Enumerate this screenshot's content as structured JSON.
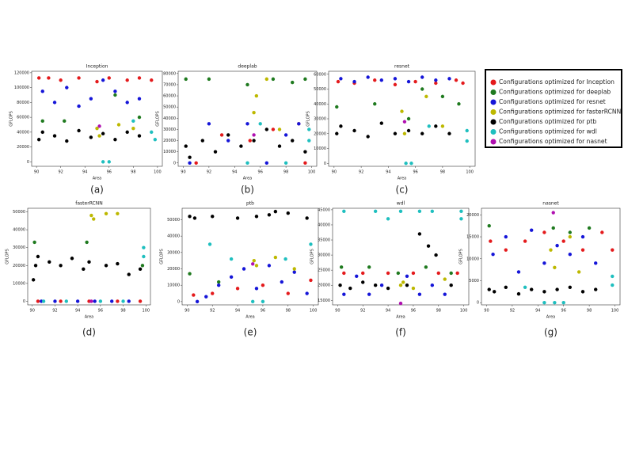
{
  "legend": [
    {
      "name": "Configurations optimized for Inception",
      "color": "#e41a1c"
    },
    {
      "name": "Configurations optimized for deeplab",
      "color": "#1f7a1f"
    },
    {
      "name": "Configurations optimized for  resnet",
      "color": "#1515d8"
    },
    {
      "name": "Configurations optimized for  fasterRCNN",
      "color": "#bdb800"
    },
    {
      "name": "Configurations optimized for  ptb",
      "color": "#000000"
    },
    {
      "name": "Configurations optimized for  wdl",
      "color": "#1fbfbf"
    },
    {
      "name": "Configurations optimized for  nasnet",
      "color": "#b010b0"
    }
  ],
  "chart_data": [
    {
      "type": "scatter",
      "title": "Inception",
      "label": "(a)",
      "xlabel": "Area",
      "ylabel": "GFLOPS",
      "xlim": [
        89.6,
        100.4
      ],
      "xticks": [
        90,
        92,
        94,
        96,
        98,
        100
      ],
      "ylim": [
        -6000,
        122000
      ],
      "yticks": [
        0,
        20000,
        40000,
        60000,
        80000,
        100000,
        120000
      ],
      "series": [
        {
          "x": [
            90.2,
            91,
            92,
            93.5,
            95,
            96,
            97.5,
            98.5,
            99.5
          ],
          "y": [
            113000,
            113000,
            110000,
            113000,
            108000,
            113000,
            110000,
            113000,
            110000
          ]
        },
        {
          "x": [
            90.5,
            92.3,
            96.5,
            98.5
          ],
          "y": [
            55000,
            55000,
            90000,
            60000
          ]
        },
        {
          "x": [
            90.5,
            91.5,
            92.5,
            93.5,
            94.5,
            95.5,
            96.5,
            97.5,
            98.5
          ],
          "y": [
            95000,
            80000,
            100000,
            75000,
            85000,
            110000,
            95000,
            80000,
            85000
          ]
        },
        {
          "x": [
            95,
            95.2,
            96.8,
            98
          ],
          "y": [
            45000,
            35000,
            50000,
            45000
          ]
        },
        {
          "x": [
            90.2,
            90.5,
            91.5,
            92.5,
            93.5,
            94.5,
            95.5,
            96.5,
            97.5,
            98.5
          ],
          "y": [
            30000,
            40000,
            35000,
            28000,
            42000,
            33000,
            38000,
            30000,
            40000,
            35000
          ]
        },
        {
          "x": [
            95.5,
            96,
            99.5,
            99.8,
            98
          ],
          "y": [
            0,
            0,
            40000,
            30000,
            55000
          ]
        },
        {
          "x": [
            95.2
          ],
          "y": [
            48000
          ]
        }
      ]
    },
    {
      "type": "scatter",
      "title": "deeplab",
      "label": "(b)",
      "xlabel": "Area",
      "ylabel": "GFLOPS",
      "xlim": [
        89.6,
        100.4
      ],
      "xticks": [
        90,
        92,
        94,
        96,
        98,
        100
      ],
      "ylim": [
        -3000,
        82000
      ],
      "yticks": [
        0,
        10000,
        20000,
        30000,
        40000,
        50000,
        60000,
        70000,
        80000
      ],
      "series": [
        {
          "x": [
            91,
            93,
            95.2,
            97,
            99,
            99.5
          ],
          "y": [
            0,
            25000,
            20000,
            30000,
            35000,
            0
          ]
        },
        {
          "x": [
            90.2,
            92,
            95,
            97,
            98.5,
            99.5
          ],
          "y": [
            75000,
            75000,
            70000,
            75000,
            72000,
            75000
          ]
        },
        {
          "x": [
            90.5,
            92,
            93.5,
            95,
            96.5,
            98,
            99
          ],
          "y": [
            0,
            35000,
            20000,
            35000,
            0,
            25000,
            35000
          ]
        },
        {
          "x": [
            95.5,
            95.7,
            96.5,
            97.5
          ],
          "y": [
            45000,
            60000,
            75000,
            30000
          ]
        },
        {
          "x": [
            90.2,
            90.5,
            91.5,
            92.5,
            93.5,
            94.5,
            95.5,
            96.5,
            97.5,
            98.5,
            99.5
          ],
          "y": [
            15000,
            5000,
            20000,
            10000,
            25000,
            15000,
            20000,
            30000,
            15000,
            20000,
            10000
          ]
        },
        {
          "x": [
            95,
            96,
            98,
            99.8,
            99.8
          ],
          "y": [
            0,
            35000,
            0,
            30000,
            20000
          ]
        },
        {
          "x": [
            95.5
          ],
          "y": [
            25000
          ]
        }
      ]
    },
    {
      "type": "scatter",
      "title": "resnet",
      "label": "(c)",
      "xlabel": "Area",
      "ylabel": "GFLOPS",
      "xlim": [
        89.6,
        100.4
      ],
      "xticks": [
        90,
        92,
        94,
        96,
        98,
        100
      ],
      "ylim": [
        -2000,
        62000
      ],
      "yticks": [
        0,
        10000,
        20000,
        30000,
        40000,
        50000,
        60000
      ],
      "series": [
        {
          "x": [
            90.3,
            91.5,
            93,
            94.5,
            96,
            97.5,
            99,
            99.5
          ],
          "y": [
            55000,
            54000,
            56000,
            53000,
            55000,
            54000,
            56000,
            54000
          ]
        },
        {
          "x": [
            90.2,
            93,
            95.5,
            96.5,
            98,
            99.2
          ],
          "y": [
            38000,
            40000,
            30000,
            50000,
            45000,
            40000
          ]
        },
        {
          "x": [
            90.5,
            91.5,
            92.5,
            93.5,
            94.5,
            95.5,
            96.5,
            97.5,
            98.5
          ],
          "y": [
            57000,
            55000,
            58000,
            56000,
            57000,
            55000,
            58000,
            56000,
            57000
          ]
        },
        {
          "x": [
            95,
            95.2,
            96.8,
            98
          ],
          "y": [
            35000,
            20000,
            45000,
            25000
          ]
        },
        {
          "x": [
            90.2,
            90.5,
            91.5,
            92.5,
            93.5,
            94.5,
            95.5,
            96.5,
            97.5,
            98.5
          ],
          "y": [
            20000,
            25000,
            22000,
            18000,
            27000,
            20000,
            22000,
            20000,
            25000,
            20000
          ]
        },
        {
          "x": [
            95.3,
            95.7,
            97,
            99.8,
            99.8
          ],
          "y": [
            0,
            0,
            25000,
            15000,
            22000
          ]
        },
        {
          "x": [
            95.2
          ],
          "y": [
            28000
          ]
        }
      ]
    },
    {
      "type": "scatter",
      "title": "fasterRCNN",
      "label": "(d)",
      "xlabel": "Area",
      "ylabel": "GFLOPS",
      "xlim": [
        89.6,
        100.4
      ],
      "xticks": [
        90,
        92,
        94,
        96,
        98,
        100
      ],
      "ylim": [
        -2000,
        52000
      ],
      "yticks": [
        0,
        10000,
        20000,
        30000,
        40000,
        50000
      ],
      "series": [
        {
          "x": [
            90.5,
            92.5,
            95,
            97.5,
            99.5
          ],
          "y": [
            0,
            0,
            0,
            0,
            0
          ]
        },
        {
          "x": [
            90.2,
            94.8,
            99.7
          ],
          "y": [
            33000,
            33000,
            20000
          ]
        },
        {
          "x": [
            90.8,
            92,
            94,
            95.5,
            97,
            98.5
          ],
          "y": [
            0,
            0,
            0,
            0,
            0,
            0
          ]
        },
        {
          "x": [
            95.2,
            95.4,
            96.5,
            97.5
          ],
          "y": [
            48000,
            46000,
            49000,
            49000
          ]
        },
        {
          "x": [
            90.1,
            90.3,
            90.5,
            91.5,
            92.5,
            93.5,
            94.5,
            95,
            96.5,
            97.5,
            98.5,
            99.5
          ],
          "y": [
            12000,
            20000,
            25000,
            22000,
            20000,
            24000,
            18000,
            22000,
            20000,
            21000,
            15000,
            18000
          ]
        },
        {
          "x": [
            91,
            93,
            96,
            98,
            99.8,
            99.8
          ],
          "y": [
            0,
            0,
            0,
            0,
            25000,
            30000
          ]
        },
        {
          "x": [
            95.2
          ],
          "y": [
            0
          ]
        }
      ]
    },
    {
      "type": "scatter",
      "title": "ptb",
      "label": "(e)",
      "xlabel": "Area",
      "ylabel": "GFLOPS",
      "xlim": [
        89.6,
        100.4
      ],
      "xticks": [
        90,
        92,
        94,
        96,
        98,
        100
      ],
      "ylim": [
        -2000,
        57000
      ],
      "yticks": [
        0,
        10000,
        20000,
        30000,
        40000,
        50000
      ],
      "series": [
        {
          "x": [
            90.5,
            92,
            94,
            96,
            98,
            99.8
          ],
          "y": [
            4000,
            5000,
            8000,
            10000,
            5000,
            13000
          ]
        },
        {
          "x": [
            90.2,
            92.5
          ],
          "y": [
            17000,
            12000
          ]
        },
        {
          "x": [
            90.8,
            91.5,
            92.5,
            93.5,
            94.5,
            95.5,
            96.5,
            97.5,
            98.5,
            99.5
          ],
          "y": [
            0,
            3000,
            10000,
            15000,
            20000,
            8000,
            22000,
            12000,
            18000,
            5000
          ]
        },
        {
          "x": [
            95.3,
            95.5,
            97,
            98.5
          ],
          "y": [
            25000,
            22000,
            27000,
            20000
          ]
        },
        {
          "x": [
            90.2,
            90.6,
            92,
            94,
            95.5,
            96.5,
            97,
            98,
            99.5
          ],
          "y": [
            52000,
            51000,
            52000,
            51000,
            52000,
            53000,
            55000,
            54000,
            51000
          ]
        },
        {
          "x": [
            91.8,
            93.5,
            95.2,
            96,
            97.8,
            99.8
          ],
          "y": [
            35000,
            26000,
            0,
            0,
            26000,
            35000
          ]
        },
        {
          "x": [
            95.2
          ],
          "y": [
            23000
          ]
        }
      ]
    },
    {
      "type": "scatter",
      "title": "wdl",
      "label": "(f)",
      "xlabel": "Area",
      "ylabel": "GFLOPS",
      "xlim": [
        89.6,
        100.4
      ],
      "xticks": [
        90,
        92,
        94,
        96,
        98,
        100
      ],
      "ylim": [
        13500,
        45500
      ],
      "yticks": [
        15000,
        20000,
        25000,
        30000,
        35000,
        40000,
        45000
      ],
      "series": [
        {
          "x": [
            90.5,
            92,
            94,
            96,
            98,
            99.5
          ],
          "y": [
            24000,
            24000,
            24000,
            24000,
            24000,
            24000
          ]
        },
        {
          "x": [
            90.3,
            92.5,
            94.8,
            97,
            99
          ],
          "y": [
            26000,
            26000,
            24000,
            26000,
            24000
          ]
        },
        {
          "x": [
            90.5,
            91.5,
            92.5,
            93.5,
            95.5,
            96.5,
            97.5,
            98.5
          ],
          "y": [
            17000,
            23000,
            17000,
            20000,
            23000,
            17000,
            20000,
            17000
          ]
        },
        {
          "x": [
            95,
            95.2,
            96,
            98.5
          ],
          "y": [
            20000,
            21000,
            19000,
            22000
          ]
        },
        {
          "x": [
            90.2,
            91,
            92,
            93,
            94,
            95.5,
            96.5,
            97.2,
            97.8,
            99
          ],
          "y": [
            20000,
            19000,
            21000,
            20000,
            19000,
            20000,
            37000,
            33000,
            30000,
            20000
          ]
        },
        {
          "x": [
            90.5,
            93,
            94,
            95,
            96.5,
            97.5,
            99.8,
            99.8
          ],
          "y": [
            44500,
            44500,
            42000,
            44500,
            44500,
            44500,
            42000,
            44500
          ]
        },
        {
          "x": [
            95
          ],
          "y": [
            14000
          ]
        }
      ]
    },
    {
      "type": "scatter",
      "title": "nasnet",
      "label": "(g)",
      "xlabel": "Area",
      "ylabel": "GFLOPS",
      "xlim": [
        89.6,
        100.4
      ],
      "xticks": [
        90,
        92,
        94,
        96,
        98,
        100
      ],
      "ylim": [
        -500,
        21500
      ],
      "yticks": [
        0,
        5000,
        10000,
        15000,
        20000
      ],
      "series": [
        {
          "x": [
            90.3,
            91.5,
            93,
            94.5,
            96,
            97.5,
            99,
            99.8
          ],
          "y": [
            14000,
            12000,
            14000,
            16000,
            14000,
            12000,
            16000,
            12000
          ]
        },
        {
          "x": [
            90.2,
            95.2,
            96.5,
            98
          ],
          "y": [
            17500,
            17000,
            16000,
            17000
          ]
        },
        {
          "x": [
            90.5,
            91.5,
            92.5,
            93.5,
            94.5,
            95.5,
            96.5,
            97.5,
            98.5
          ],
          "y": [
            11000,
            15000,
            7000,
            16500,
            9000,
            13000,
            11000,
            15000,
            9000
          ]
        },
        {
          "x": [
            95,
            95.3,
            96.5,
            97.2
          ],
          "y": [
            12000,
            8000,
            15000,
            7000
          ]
        },
        {
          "x": [
            90.2,
            90.6,
            91.5,
            92.5,
            93.5,
            94.5,
            95.5,
            96.5,
            97.5,
            98.5
          ],
          "y": [
            3000,
            2500,
            3500,
            2000,
            3000,
            2500,
            3000,
            3500,
            2500,
            3000
          ]
        },
        {
          "x": [
            93,
            94.5,
            95.3,
            96,
            99.8,
            99.8
          ],
          "y": [
            3500,
            0,
            0,
            0,
            4000,
            6000
          ]
        },
        {
          "x": [
            95.2
          ],
          "y": [
            20500
          ]
        }
      ]
    }
  ]
}
